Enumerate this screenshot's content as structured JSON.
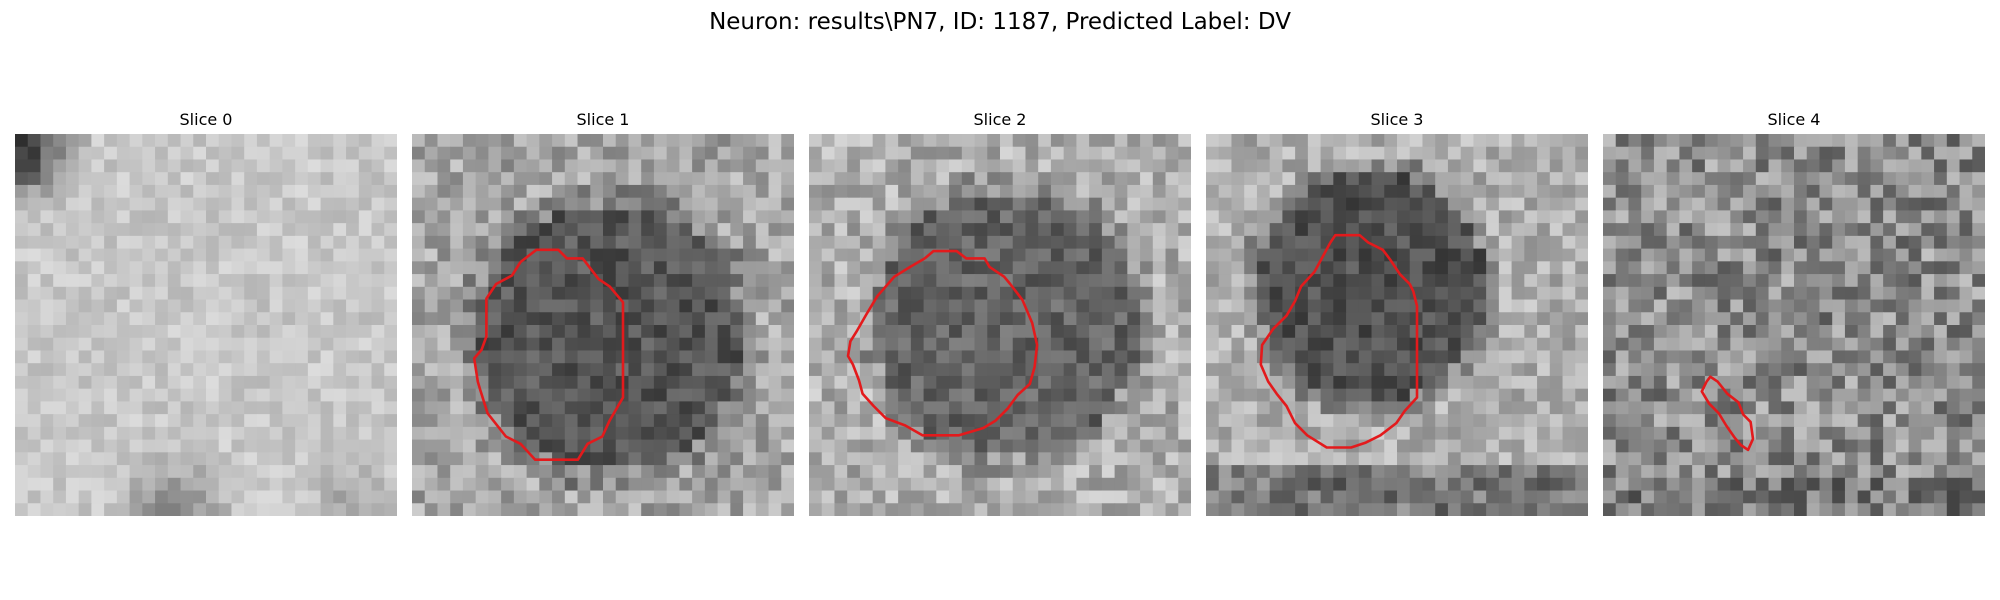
{
  "figure": {
    "title": "Neuron: results\\PN7, ID: 1187, Predicted Label: DV"
  },
  "panels": [
    {
      "title": "Slice 0",
      "image_kind": "grayscale noise patch, no dark neuron body",
      "has_contour": false,
      "contour_color": "#e31a1c"
    },
    {
      "title": "Slice 1",
      "image_kind": "grayscale patch with dark round neuron body",
      "has_contour": true,
      "contour_color": "#e31a1c"
    },
    {
      "title": "Slice 2",
      "image_kind": "grayscale patch with dark round neuron body",
      "has_contour": true,
      "contour_color": "#e31a1c"
    },
    {
      "title": "Slice 3",
      "image_kind": "grayscale patch with dark round neuron body",
      "has_contour": true,
      "contour_color": "#e31a1c"
    },
    {
      "title": "Slice 4",
      "image_kind": "grayscale noise patch with small elongated contour",
      "has_contour": true,
      "contour_color": "#e31a1c"
    }
  ]
}
